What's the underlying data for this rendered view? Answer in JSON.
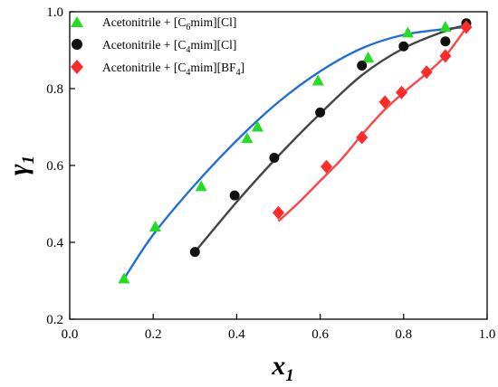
{
  "chart_data": {
    "type": "scatter",
    "xlabel": "x",
    "xlabel_sub": "1",
    "ylabel": "γ",
    "ylabel_sub": "1",
    "xlim": [
      0.0,
      1.0
    ],
    "ylim": [
      0.2,
      1.0
    ],
    "x_ticks": [
      "0.0",
      "0.2",
      "0.4",
      "0.6",
      "0.8",
      "1.0"
    ],
    "y_ticks": [
      "0.2",
      "0.4",
      "0.6",
      "0.8",
      "1.0"
    ],
    "legend_position": "top-left",
    "series": [
      {
        "name": "Acetonitrile + [C6mim][Cl]",
        "legend_pre": "Acetonitrile + [C",
        "legend_sub": "6",
        "legend_post": "mim][Cl]",
        "marker": "triangle",
        "marker_color": "#22dd22",
        "line_color": "#1f6fd6",
        "points": [
          [
            0.13,
            0.305
          ],
          [
            0.205,
            0.44
          ],
          [
            0.315,
            0.545
          ],
          [
            0.425,
            0.67
          ],
          [
            0.45,
            0.7
          ],
          [
            0.595,
            0.82
          ],
          [
            0.715,
            0.88
          ],
          [
            0.81,
            0.945
          ],
          [
            0.9,
            0.96
          ]
        ],
        "fit": [
          [
            0.13,
            0.305
          ],
          [
            0.2,
            0.42
          ],
          [
            0.3,
            0.55
          ],
          [
            0.4,
            0.665
          ],
          [
            0.5,
            0.765
          ],
          [
            0.6,
            0.845
          ],
          [
            0.7,
            0.905
          ],
          [
            0.8,
            0.94
          ],
          [
            0.9,
            0.955
          ],
          [
            0.95,
            0.96
          ]
        ]
      },
      {
        "name": "Acetonitrile + [C4mim][Cl]",
        "legend_pre": "Acetonitrile + [C",
        "legend_sub": "4",
        "legend_post": "mim][Cl]",
        "marker": "circle",
        "marker_color": "#111111",
        "line_color": "#444444",
        "points": [
          [
            0.3,
            0.375
          ],
          [
            0.395,
            0.522
          ],
          [
            0.49,
            0.62
          ],
          [
            0.6,
            0.738
          ],
          [
            0.7,
            0.86
          ],
          [
            0.8,
            0.91
          ],
          [
            0.9,
            0.923
          ],
          [
            0.95,
            0.97
          ]
        ],
        "fit": [
          [
            0.3,
            0.375
          ],
          [
            0.4,
            0.505
          ],
          [
            0.5,
            0.625
          ],
          [
            0.6,
            0.735
          ],
          [
            0.7,
            0.835
          ],
          [
            0.8,
            0.905
          ],
          [
            0.9,
            0.95
          ],
          [
            0.95,
            0.965
          ]
        ]
      },
      {
        "name": "Acetonitrile + [C4mim][BF4]",
        "legend_pre": "Acetonitrile + [C",
        "legend_sub": "4",
        "legend_post": "mim][BF",
        "legend_sub2": "4",
        "legend_post2": "]",
        "marker": "diamond",
        "marker_color": "#ff2a2a",
        "line_color": "#ff4444",
        "points": [
          [
            0.5,
            0.477
          ],
          [
            0.615,
            0.597
          ],
          [
            0.7,
            0.673
          ],
          [
            0.755,
            0.765
          ],
          [
            0.795,
            0.79
          ],
          [
            0.855,
            0.843
          ],
          [
            0.9,
            0.885
          ],
          [
            0.95,
            0.96
          ]
        ],
        "fit": [
          [
            0.5,
            0.455
          ],
          [
            0.55,
            0.505
          ],
          [
            0.6,
            0.56
          ],
          [
            0.65,
            0.615
          ],
          [
            0.7,
            0.68
          ],
          [
            0.75,
            0.74
          ],
          [
            0.8,
            0.79
          ],
          [
            0.85,
            0.835
          ],
          [
            0.9,
            0.885
          ],
          [
            0.95,
            0.958
          ]
        ]
      }
    ]
  }
}
